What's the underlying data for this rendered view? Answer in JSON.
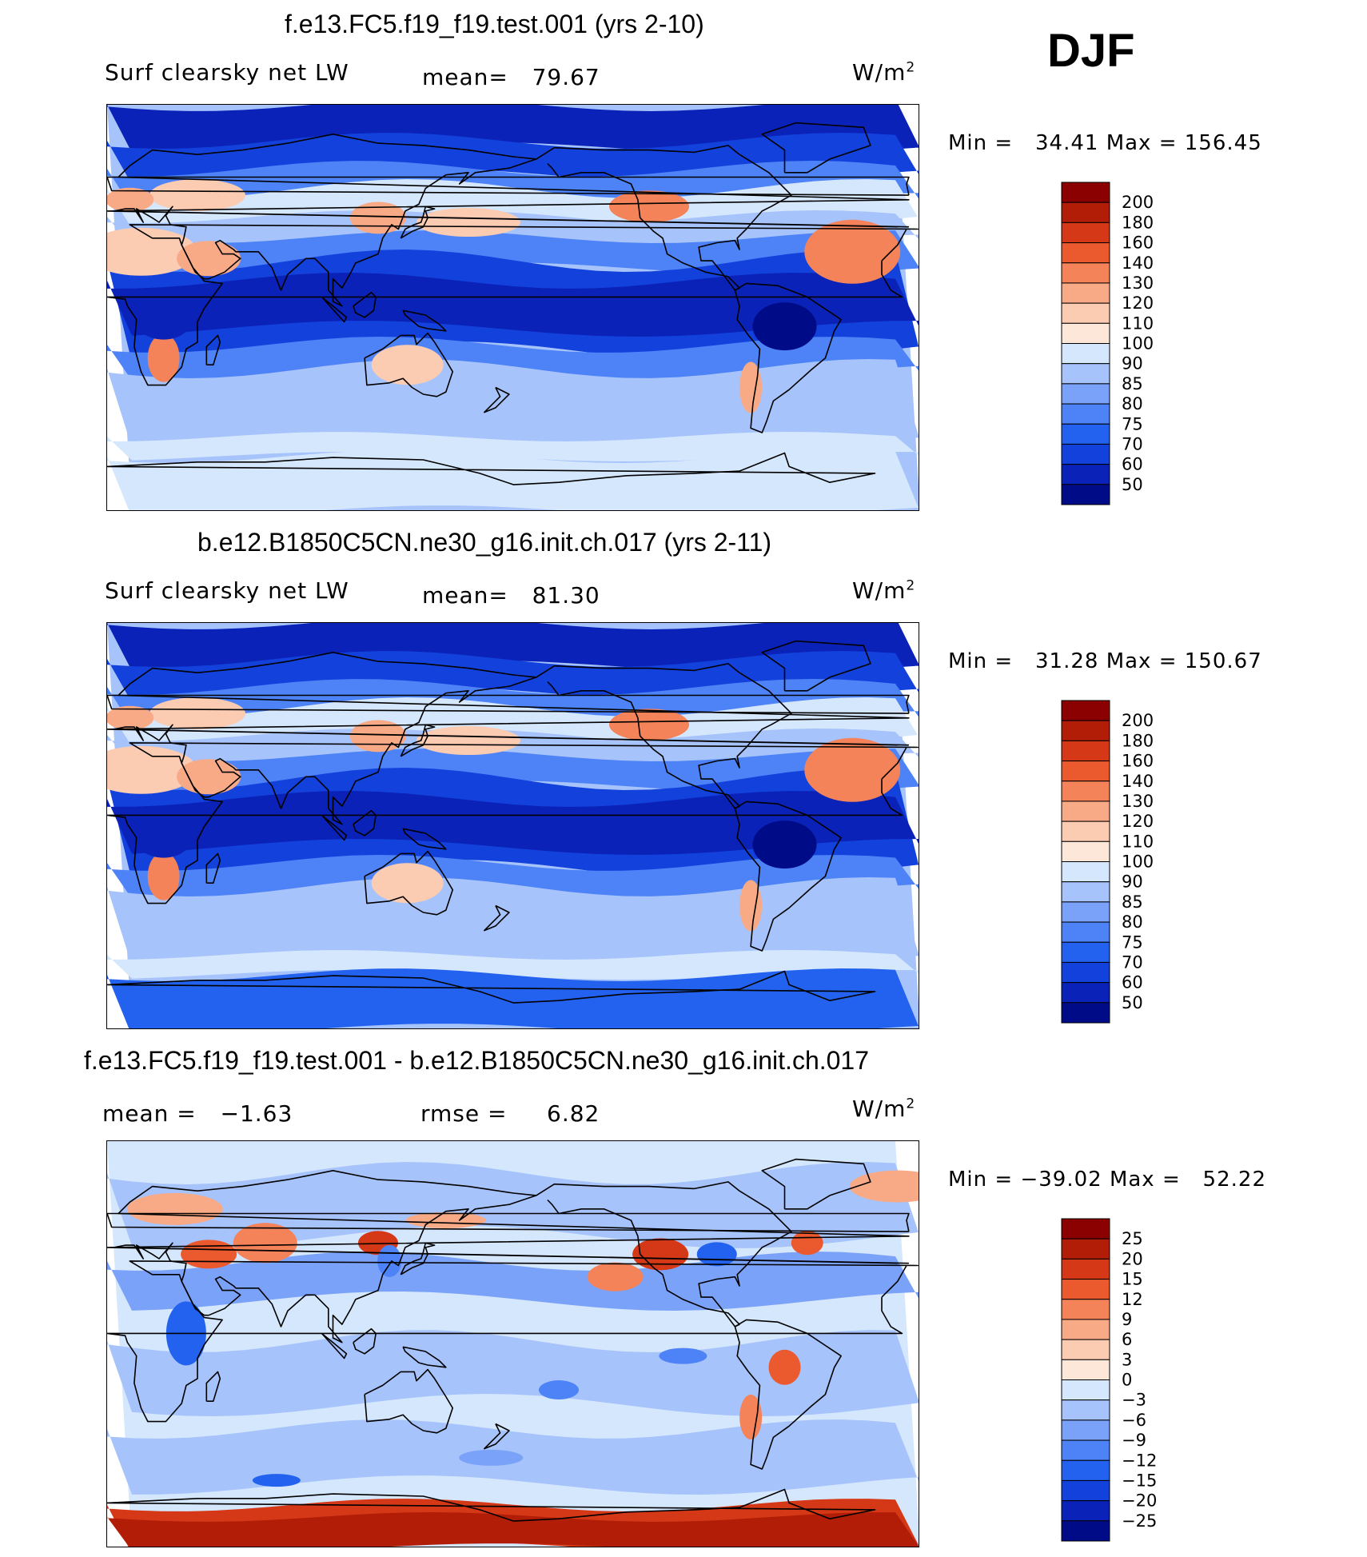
{
  "season": "DJF",
  "units": "W/m",
  "units_exp": "2",
  "panels": [
    {
      "title": "f.e13.FC5.f19_f19.test.001 (yrs 2-10)",
      "variable": "Surf clearsky net LW",
      "stat_label": "mean=",
      "stat_value": "79.67",
      "min_label": "Min =",
      "min_value": "34.41",
      "max_label": "Max =",
      "max_value": "156.45"
    },
    {
      "title": "b.e12.B1850C5CN.ne30_g16.init.ch.017 (yrs 2-11)",
      "variable": "Surf clearsky net LW",
      "stat_label": "mean=",
      "stat_value": "81.30",
      "min_label": "Min =",
      "min_value": "31.28",
      "max_label": "Max =",
      "max_value": "150.67"
    },
    {
      "title": "f.e13.FC5.f19_f19.test.001 - b.e12.B1850C5CN.ne30_g16.init.ch.017",
      "stat_label": "mean =",
      "stat_value": "−1.63",
      "rmse_label": "rmse =",
      "rmse_value": "6.82",
      "min_label": "Min =",
      "min_value": "−39.02",
      "max_label": "Max =",
      "max_value": "52.22"
    }
  ],
  "chart_data": [
    {
      "type": "heatmap",
      "title": "f.e13.FC5.f19_f19.test.001 (yrs 2-10)",
      "field": "Surf clearsky net LW",
      "units": "W/m2",
      "season": "DJF",
      "mean": 79.67,
      "min": 34.41,
      "max": 156.45,
      "projection": "cylindrical equidistant, centered on Pacific",
      "lon_range": [
        0,
        360
      ],
      "lat_range": [
        -90,
        90
      ],
      "levels": [
        50,
        60,
        70,
        75,
        80,
        85,
        90,
        100,
        110,
        120,
        130,
        140,
        160,
        180,
        200
      ],
      "colors": [
        "#000b87",
        "#0a22b8",
        "#1341dc",
        "#2262ef",
        "#4d83f6",
        "#7ba2f9",
        "#a6c3fb",
        "#d5e7fd",
        "#fde7d8",
        "#fbcbb2",
        "#f8aa86",
        "#f5835a",
        "#eb5a2e",
        "#d43816",
        "#b11d07",
        "#8b0000"
      ]
    },
    {
      "type": "heatmap",
      "title": "b.e12.B1850C5CN.ne30_g16.init.ch.017 (yrs 2-11)",
      "field": "Surf clearsky net LW",
      "units": "W/m2",
      "season": "DJF",
      "mean": 81.3,
      "min": 31.28,
      "max": 150.67,
      "projection": "cylindrical equidistant, centered on Pacific",
      "lon_range": [
        0,
        360
      ],
      "lat_range": [
        -90,
        90
      ],
      "levels": [
        50,
        60,
        70,
        75,
        80,
        85,
        90,
        100,
        110,
        120,
        130,
        140,
        160,
        180,
        200
      ],
      "colors": [
        "#000b87",
        "#0a22b8",
        "#1341dc",
        "#2262ef",
        "#4d83f6",
        "#7ba2f9",
        "#a6c3fb",
        "#d5e7fd",
        "#fde7d8",
        "#fbcbb2",
        "#f8aa86",
        "#f5835a",
        "#eb5a2e",
        "#d43816",
        "#b11d07",
        "#8b0000"
      ]
    },
    {
      "type": "heatmap",
      "title": "f.e13.FC5.f19_f19.test.001 - b.e12.B1850C5CN.ne30_g16.init.ch.017",
      "field": "difference",
      "units": "W/m2",
      "season": "DJF",
      "mean": -1.63,
      "rmse": 6.82,
      "min": -39.02,
      "max": 52.22,
      "projection": "cylindrical equidistant, centered on Pacific",
      "lon_range": [
        0,
        360
      ],
      "lat_range": [
        -90,
        90
      ],
      "levels": [
        -25,
        -20,
        -15,
        -12,
        -9,
        -6,
        -3,
        0,
        3,
        6,
        9,
        12,
        15,
        20,
        25
      ],
      "colors": [
        "#000b87",
        "#0a22b8",
        "#1341dc",
        "#2262ef",
        "#4d83f6",
        "#7ba2f9",
        "#a6c3fb",
        "#d5e7fd",
        "#fde7d8",
        "#fbcbb2",
        "#f8aa86",
        "#f5835a",
        "#eb5a2e",
        "#d43816",
        "#b11d07",
        "#8b0000"
      ]
    }
  ],
  "colorbars": [
    {
      "labels": [
        "200",
        "180",
        "160",
        "140",
        "130",
        "120",
        "110",
        "100",
        "90",
        "85",
        "80",
        "75",
        "70",
        "60",
        "50"
      ]
    },
    {
      "labels": [
        "200",
        "180",
        "160",
        "140",
        "130",
        "120",
        "110",
        "100",
        "90",
        "85",
        "80",
        "75",
        "70",
        "60",
        "50"
      ]
    },
    {
      "labels": [
        "25",
        "20",
        "15",
        "12",
        "9",
        "6",
        "3",
        "0",
        "−3",
        "−6",
        "−9",
        "−12",
        "−15",
        "−20",
        "−25"
      ]
    }
  ]
}
